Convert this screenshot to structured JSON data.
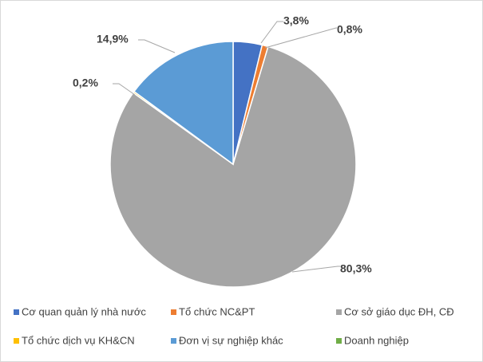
{
  "chart_data": {
    "type": "pie",
    "series": [
      {
        "name": "Cơ quan quản lý nhà nước",
        "value": 3.8,
        "label": "3,8%",
        "color": "#4472C4"
      },
      {
        "name": "Tổ chức NC&PT",
        "value": 0.8,
        "label": "0,8%",
        "color": "#ED7D31"
      },
      {
        "name": "Cơ sở giáo dục ĐH, CĐ",
        "value": 80.3,
        "label": "80,3%",
        "color": "#A5A5A5"
      },
      {
        "name": "Tổ chức dịch vụ KH&CN",
        "value": 0.2,
        "label": "0,2%",
        "color": "#FFC000"
      },
      {
        "name": "Đơn vị sự nghiệp khác",
        "value": 14.9,
        "label": "14,9%",
        "color": "#5B9BD5"
      },
      {
        "name": "Doanh nghiệp",
        "value": 0,
        "label": "",
        "color": "#70AD47"
      }
    ],
    "legend_position": "bottom",
    "start_angle": "top, clockwise"
  }
}
